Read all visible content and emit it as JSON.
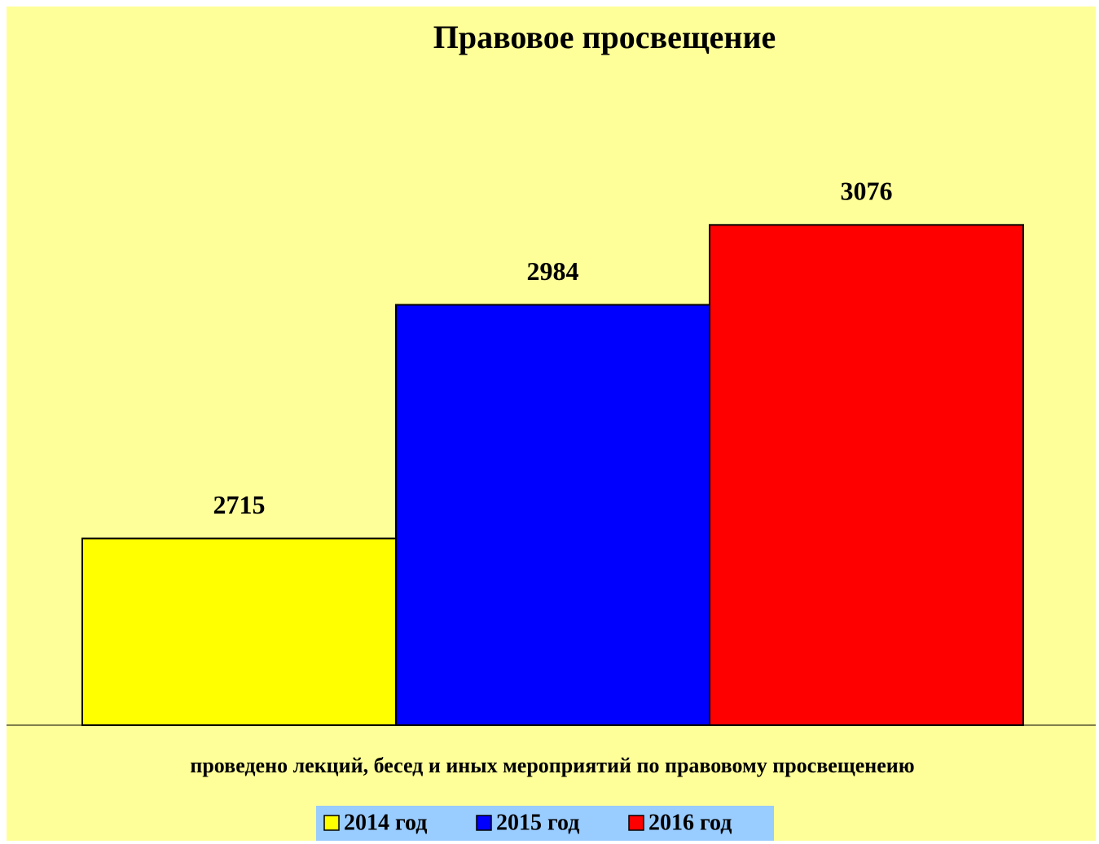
{
  "chart_data": {
    "type": "bar",
    "title": "Правовое просвещение",
    "categories": [
      "проведено лекций, бесед и иных мероприятий по правовому просвещенеию"
    ],
    "series": [
      {
        "name": "2014 год",
        "color": "#ffff00",
        "values": [
          2715
        ]
      },
      {
        "name": "2015 год",
        "color": "#0000ff",
        "values": [
          2984
        ]
      },
      {
        "name": "2016 год",
        "color": "#ff0000",
        "values": [
          3076
        ]
      }
    ],
    "ylim": [
      2500,
      3200
    ],
    "legend": "bottom"
  }
}
